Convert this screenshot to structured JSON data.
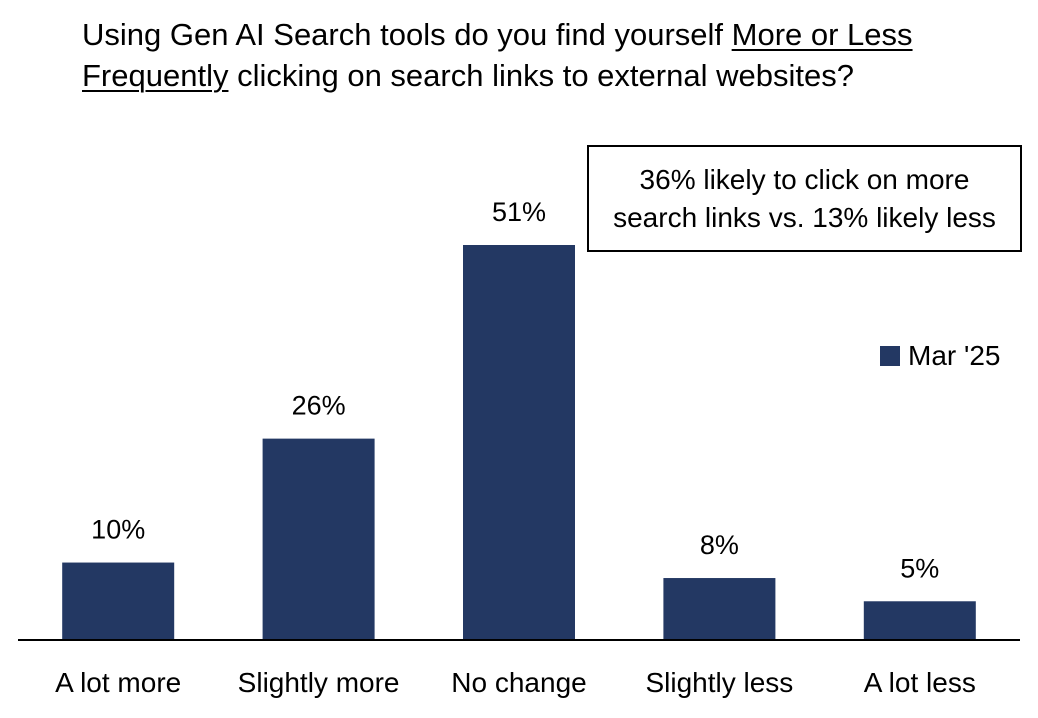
{
  "title": {
    "part1": "Using Gen AI Search tools do you find yourself ",
    "underlined1": "More or Less",
    "underlined2": "Frequently",
    "part2": " clicking on search links to external websites?"
  },
  "callout": {
    "line1": "36% likely to click on more",
    "line2": "search links vs. 13% likely less"
  },
  "legend": {
    "label": "Mar '25",
    "color": "#233863"
  },
  "chart_data": {
    "type": "bar",
    "title": "Using Gen AI Search tools do you find yourself More or Less Frequently clicking on search links to external websites?",
    "categories": [
      "A lot more",
      "Slightly more",
      "No change",
      "Slightly less",
      "A lot less"
    ],
    "series": [
      {
        "name": "Mar '25",
        "values": [
          10,
          26,
          51,
          8,
          5
        ],
        "labels": [
          "10%",
          "26%",
          "51%",
          "8%",
          "5%"
        ],
        "color": "#233863"
      }
    ],
    "ylim": [
      0,
      62
    ],
    "xlabel": "",
    "ylabel": "",
    "grid": false,
    "legend_position": "right"
  }
}
